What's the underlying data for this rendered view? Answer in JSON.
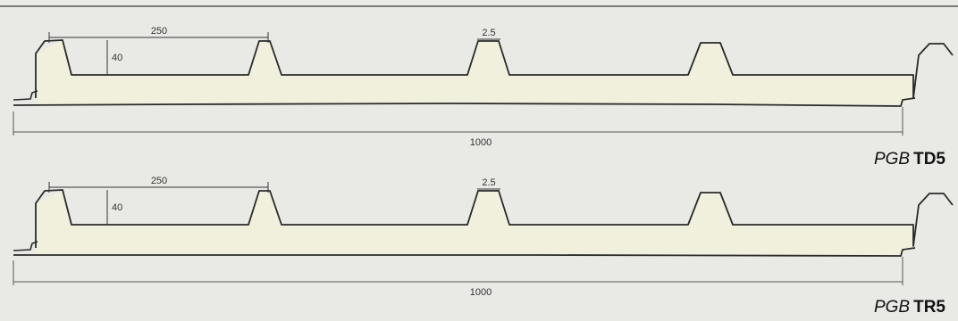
{
  "panels": [
    {
      "pitch_label": "250",
      "height_label": "40",
      "thickness_label": "2.5",
      "width_label": "1000",
      "brand": "PGB",
      "model": "TD5"
    },
    {
      "pitch_label": "250",
      "height_label": "40",
      "thickness_label": "2.5",
      "width_label": "1000",
      "brand": "PGB",
      "model": "TR5"
    }
  ],
  "colors": {
    "background": "#e9e9e6",
    "core_fill": "#f1f0dc",
    "line": "#2a2a2a"
  }
}
